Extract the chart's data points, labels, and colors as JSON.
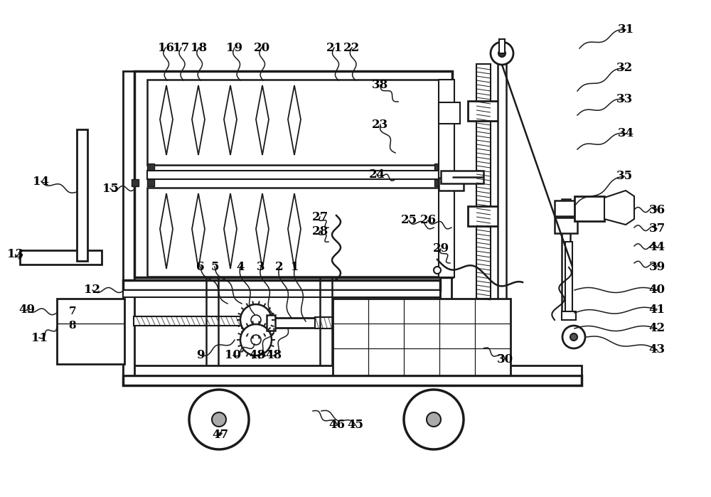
{
  "bg_color": "#ffffff",
  "line_color": "#1a1a1a",
  "label_color": "#000000",
  "figsize": [
    10.0,
    6.99
  ],
  "dpi": 100
}
